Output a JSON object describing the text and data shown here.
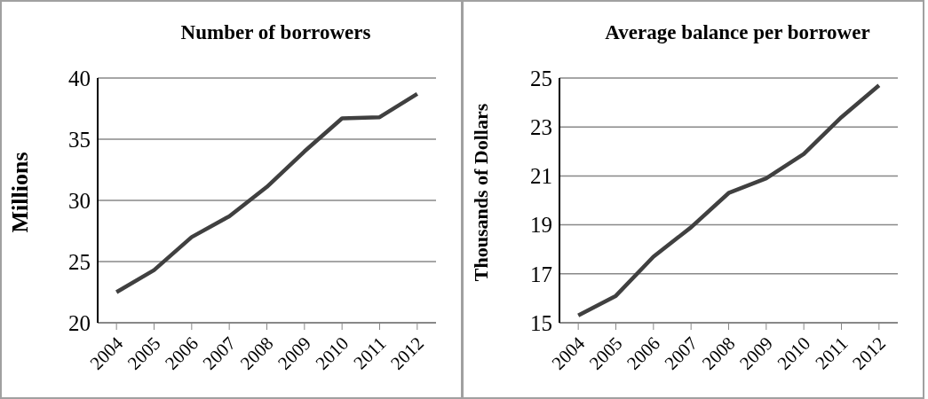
{
  "chart_data": [
    {
      "type": "line",
      "title": "Number of borrowers",
      "ylabel": "Millions",
      "categories": [
        "2004",
        "2005",
        "2006",
        "2007",
        "2008",
        "2009",
        "2010",
        "2011",
        "2012"
      ],
      "series": [
        {
          "color": "#404040",
          "values": [
            22.5,
            24.3,
            27.0,
            28.7,
            31.1,
            34.0,
            36.7,
            36.8,
            38.7
          ]
        }
      ],
      "ylim": [
        20,
        40
      ],
      "yticks": [
        20,
        25,
        30,
        35,
        40
      ],
      "grid": "y",
      "legend": false,
      "marker": "none",
      "line_style": "solid"
    },
    {
      "type": "line",
      "title": "Average balance per borrower",
      "ylabel": "Thousands of Dollars",
      "categories": [
        "2004",
        "2005",
        "2006",
        "2007",
        "2008",
        "2009",
        "2010",
        "2011",
        "2012"
      ],
      "series": [
        {
          "color": "#404040",
          "values": [
            15.3,
            16.1,
            17.7,
            18.9,
            20.3,
            20.9,
            21.9,
            23.4,
            24.7
          ]
        }
      ],
      "ylim": [
        15,
        25
      ],
      "yticks": [
        15,
        17,
        19,
        21,
        23,
        25
      ],
      "grid": "y",
      "legend": false,
      "marker": "none",
      "line_style": "solid"
    }
  ]
}
